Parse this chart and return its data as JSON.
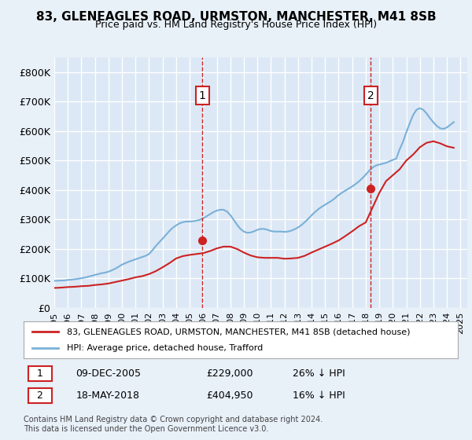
{
  "title": "83, GLENEAGLES ROAD, URMSTON, MANCHESTER, M41 8SB",
  "subtitle": "Price paid vs. HM Land Registry's House Price Index (HPI)",
  "ylabel_ticks": [
    "£0",
    "£100K",
    "£200K",
    "£300K",
    "£400K",
    "£500K",
    "£600K",
    "£700K",
    "£800K"
  ],
  "ytick_vals": [
    0,
    100000,
    200000,
    300000,
    400000,
    500000,
    600000,
    700000,
    800000
  ],
  "ylim": [
    0,
    850000
  ],
  "xlim_start": 1995.0,
  "xlim_end": 2025.5,
  "background_color": "#e8f0f8",
  "plot_bg_color": "#dce8f5",
  "grid_color": "#ffffff",
  "hpi_line_color": "#7ab0d8",
  "price_line_color": "#cc2222",
  "marker1_x": 2005.93,
  "marker1_y": 229000,
  "marker1_label": "1",
  "marker1_date": "09-DEC-2005",
  "marker1_price": "£229,000",
  "marker1_hpi": "26% ↓ HPI",
  "marker2_x": 2018.38,
  "marker2_y": 404950,
  "marker2_label": "2",
  "marker2_date": "18-MAY-2018",
  "marker2_price": "£404,950",
  "marker2_hpi": "16% ↓ HPI",
  "legend_line1": "83, GLENEAGLES ROAD, URMSTON, MANCHESTER, M41 8SB (detached house)",
  "legend_line2": "HPI: Average price, detached house, Trafford",
  "footnote": "Contains HM Land Registry data © Crown copyright and database right 2024.\nThis data is licensed under the Open Government Licence v3.0.",
  "hpi_years": [
    1995.0,
    1995.25,
    1995.5,
    1995.75,
    1996.0,
    1996.25,
    1996.5,
    1996.75,
    1997.0,
    1997.25,
    1997.5,
    1997.75,
    1998.0,
    1998.25,
    1998.5,
    1998.75,
    1999.0,
    1999.25,
    1999.5,
    1999.75,
    2000.0,
    2000.25,
    2000.5,
    2000.75,
    2001.0,
    2001.25,
    2001.5,
    2001.75,
    2002.0,
    2002.25,
    2002.5,
    2002.75,
    2003.0,
    2003.25,
    2003.5,
    2003.75,
    2004.0,
    2004.25,
    2004.5,
    2004.75,
    2005.0,
    2005.25,
    2005.5,
    2005.75,
    2006.0,
    2006.25,
    2006.5,
    2006.75,
    2007.0,
    2007.25,
    2007.5,
    2007.75,
    2008.0,
    2008.25,
    2008.5,
    2008.75,
    2009.0,
    2009.25,
    2009.5,
    2009.75,
    2010.0,
    2010.25,
    2010.5,
    2010.75,
    2011.0,
    2011.25,
    2011.5,
    2011.75,
    2012.0,
    2012.25,
    2012.5,
    2012.75,
    2013.0,
    2013.25,
    2013.5,
    2013.75,
    2014.0,
    2014.25,
    2014.5,
    2014.75,
    2015.0,
    2015.25,
    2015.5,
    2015.75,
    2016.0,
    2016.25,
    2016.5,
    2016.75,
    2017.0,
    2017.25,
    2017.5,
    2017.75,
    2018.0,
    2018.25,
    2018.5,
    2018.75,
    2019.0,
    2019.25,
    2019.5,
    2019.75,
    2020.0,
    2020.25,
    2020.5,
    2020.75,
    2021.0,
    2021.25,
    2021.5,
    2021.75,
    2022.0,
    2022.25,
    2022.5,
    2022.75,
    2023.0,
    2023.25,
    2023.5,
    2023.75,
    2024.0,
    2024.25,
    2024.5
  ],
  "hpi_values": [
    92000,
    92500,
    93000,
    93500,
    95000,
    96000,
    97500,
    99000,
    101000,
    103000,
    106000,
    109000,
    112000,
    115000,
    118000,
    120000,
    123000,
    128000,
    133000,
    140000,
    147000,
    152000,
    157000,
    161000,
    165000,
    169000,
    173000,
    177000,
    183000,
    196000,
    210000,
    223000,
    235000,
    248000,
    261000,
    272000,
    280000,
    287000,
    291000,
    293000,
    293000,
    294000,
    296000,
    299000,
    304000,
    311000,
    318000,
    325000,
    330000,
    333000,
    333000,
    327000,
    315000,
    299000,
    282000,
    268000,
    259000,
    255000,
    256000,
    260000,
    265000,
    268000,
    268000,
    265000,
    261000,
    259000,
    259000,
    259000,
    258000,
    259000,
    262000,
    267000,
    273000,
    281000,
    291000,
    302000,
    314000,
    325000,
    335000,
    343000,
    350000,
    357000,
    364000,
    373000,
    383000,
    391000,
    398000,
    405000,
    412000,
    420000,
    429000,
    440000,
    452000,
    465000,
    476000,
    483000,
    486000,
    489000,
    492000,
    497000,
    502000,
    506000,
    537000,
    563000,
    596000,
    626000,
    654000,
    672000,
    677000,
    672000,
    659000,
    643000,
    629000,
    617000,
    609000,
    607000,
    612000,
    621000,
    630000
  ],
  "price_years": [
    1995.0,
    1995.5,
    1996.0,
    1996.5,
    1997.0,
    1997.5,
    1998.0,
    1998.5,
    1999.0,
    1999.5,
    2000.0,
    2000.5,
    2001.0,
    2001.5,
    2002.0,
    2002.5,
    2003.0,
    2003.5,
    2004.0,
    2004.5,
    2005.0,
    2005.5,
    2006.0,
    2006.5,
    2007.0,
    2007.5,
    2008.0,
    2008.5,
    2009.0,
    2009.5,
    2010.0,
    2010.5,
    2011.0,
    2011.5,
    2012.0,
    2012.5,
    2013.0,
    2013.5,
    2014.0,
    2014.5,
    2015.0,
    2015.5,
    2016.0,
    2016.5,
    2017.0,
    2017.5,
    2018.0,
    2018.5,
    2019.0,
    2019.5,
    2020.0,
    2020.5,
    2021.0,
    2021.5,
    2022.0,
    2022.5,
    2023.0,
    2023.5,
    2024.0,
    2024.5
  ],
  "price_values": [
    68000,
    69000,
    71000,
    72000,
    74000,
    75000,
    78000,
    80000,
    83000,
    88000,
    93000,
    98000,
    104000,
    108000,
    115000,
    125000,
    138000,
    152000,
    168000,
    176000,
    180000,
    183000,
    186000,
    193000,
    202000,
    208000,
    208000,
    200000,
    188000,
    178000,
    172000,
    170000,
    170000,
    170000,
    167000,
    168000,
    170000,
    177000,
    188000,
    198000,
    208000,
    218000,
    229000,
    244000,
    260000,
    277000,
    290000,
    340000,
    390000,
    430000,
    450000,
    470000,
    500000,
    520000,
    545000,
    560000,
    565000,
    558000,
    548000,
    543000
  ]
}
